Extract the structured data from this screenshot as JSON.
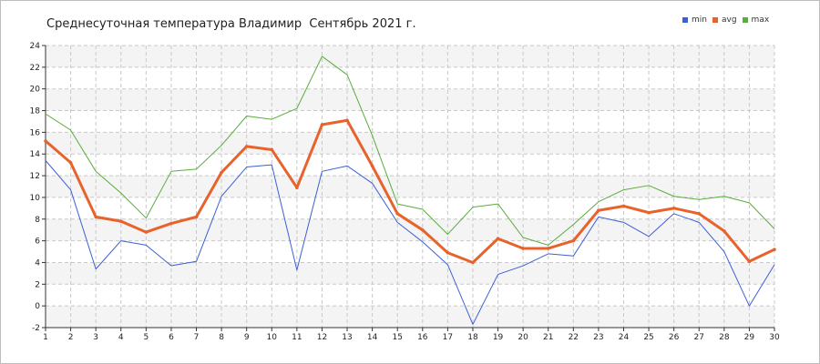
{
  "chart_data": {
    "type": "line",
    "title": "Среднесуточная температура Владимир  Сентябрь 2021 г.",
    "xlabel": "",
    "ylabel": "",
    "x": [
      1,
      2,
      3,
      4,
      5,
      6,
      7,
      8,
      9,
      10,
      11,
      12,
      13,
      14,
      15,
      16,
      17,
      18,
      19,
      20,
      21,
      22,
      23,
      24,
      25,
      26,
      27,
      28,
      29,
      30
    ],
    "xlim": [
      1,
      30
    ],
    "ylim": [
      -2,
      24
    ],
    "y_ticks": [
      -2,
      0,
      2,
      4,
      6,
      8,
      10,
      12,
      14,
      16,
      18,
      20,
      22,
      24
    ],
    "grid": true,
    "legend_position": "top-right",
    "series": [
      {
        "name": "min",
        "color": "#3c5fd6",
        "values": [
          13.4,
          10.7,
          3.4,
          6.0,
          5.6,
          3.7,
          4.1,
          10.1,
          12.8,
          13.0,
          3.3,
          12.4,
          12.9,
          11.3,
          7.7,
          5.9,
          3.8,
          -1.7,
          2.9,
          3.7,
          4.8,
          4.6,
          8.2,
          7.7,
          6.4,
          8.5,
          7.7,
          5.0,
          0.0,
          3.8
        ]
      },
      {
        "name": "avg",
        "color": "#e8632b",
        "values": [
          15.2,
          13.2,
          8.2,
          7.8,
          6.8,
          7.6,
          8.2,
          12.3,
          14.7,
          14.4,
          10.9,
          16.7,
          17.1,
          12.9,
          8.5,
          7.0,
          4.9,
          4.0,
          6.2,
          5.3,
          5.3,
          6.0,
          8.8,
          9.2,
          8.6,
          9.0,
          8.5,
          6.9,
          4.1,
          5.2
        ]
      },
      {
        "name": "max",
        "color": "#5aac3e",
        "values": [
          17.7,
          16.2,
          12.4,
          10.4,
          8.1,
          12.4,
          12.6,
          14.8,
          17.5,
          17.2,
          18.2,
          23.0,
          21.3,
          15.7,
          9.4,
          8.9,
          6.6,
          9.1,
          9.4,
          6.3,
          5.6,
          7.5,
          9.6,
          10.7,
          11.1,
          10.1,
          9.8,
          10.1,
          9.5,
          7.1
        ]
      }
    ]
  }
}
